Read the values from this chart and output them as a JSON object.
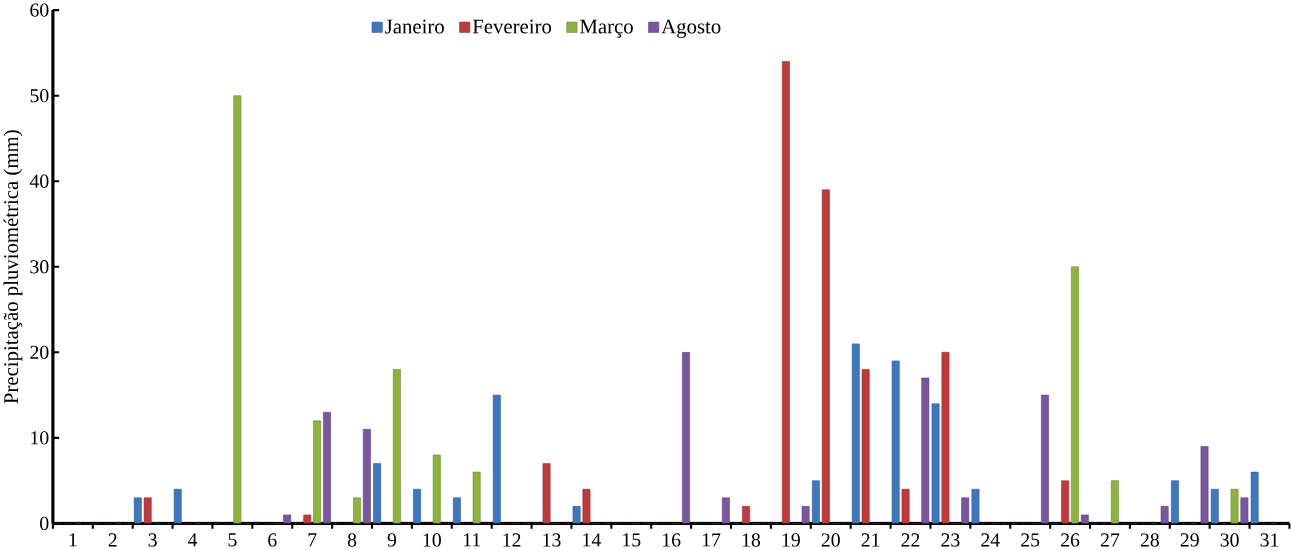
{
  "chart_data": {
    "type": "bar",
    "ylabel": "Precipitação pluviométrica (mm)",
    "categories": [
      "1",
      "2",
      "3",
      "4",
      "5",
      "6",
      "7",
      "8",
      "9",
      "10",
      "11",
      "12",
      "13",
      "14",
      "15",
      "16",
      "17",
      "18",
      "19",
      "20",
      "21",
      "22",
      "23",
      "24",
      "25",
      "26",
      "27",
      "28",
      "29",
      "30",
      "31"
    ],
    "series": [
      {
        "name": "Janeiro",
        "color": "#3c78c0",
        "values": [
          0,
          0,
          3,
          4,
          0,
          0,
          0,
          0,
          7,
          4,
          3,
          15,
          0,
          2,
          0,
          0,
          0,
          0,
          0,
          5,
          21,
          19,
          14,
          4,
          0,
          0,
          0,
          0,
          5,
          4,
          6
        ]
      },
      {
        "name": "Fevereiro",
        "color": "#c0393b",
        "values": [
          0,
          0,
          3,
          0,
          0,
          0,
          1,
          0,
          0,
          0,
          0,
          0,
          7,
          4,
          0,
          0,
          0,
          2,
          54,
          39,
          18,
          4,
          20,
          0,
          0,
          5,
          0,
          0,
          0,
          0,
          0
        ]
      },
      {
        "name": "Março",
        "color": "#8cb33c",
        "values": [
          0,
          0,
          0,
          0,
          50,
          0,
          12,
          3,
          18,
          8,
          6,
          0,
          0,
          0,
          0,
          0,
          0,
          0,
          0,
          0,
          0,
          0,
          0,
          0,
          0,
          30,
          5,
          0,
          0,
          4,
          0
        ]
      },
      {
        "name": "Agosto",
        "color": "#7b56a0",
        "values": [
          0,
          0,
          0,
          0,
          0,
          1,
          13,
          11,
          0,
          0,
          0,
          0,
          0,
          0,
          0,
          20,
          3,
          0,
          2,
          0,
          0,
          17,
          3,
          0,
          15,
          1,
          0,
          2,
          9,
          3,
          0
        ]
      }
    ],
    "ylim": [
      0,
      60
    ],
    "yticks": [
      0,
      10,
      20,
      30,
      40,
      50,
      60
    ],
    "grid": false,
    "legend": "top"
  }
}
